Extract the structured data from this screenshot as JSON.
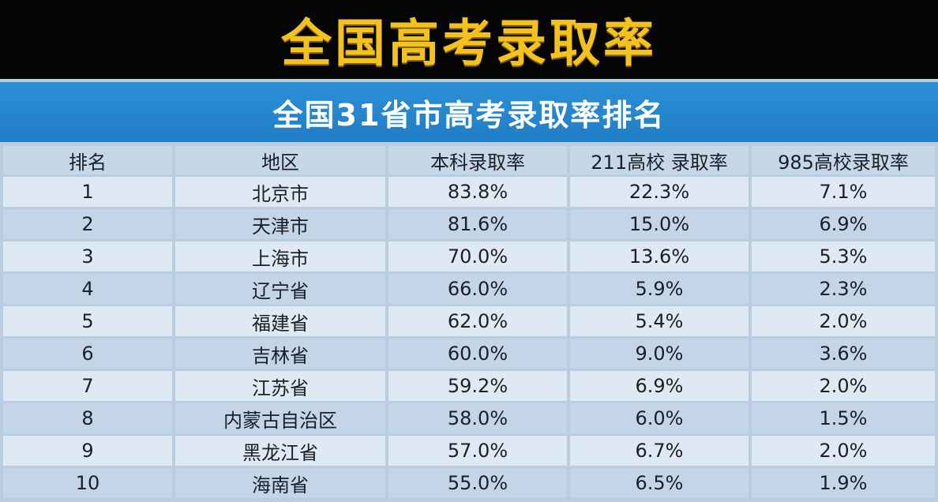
{
  "banner": {
    "title": "全国高考录取率"
  },
  "subtitle": "全国31省市高考录取率排名",
  "colors": {
    "banner_bg": "#050505",
    "title_gold": "#f3c21c",
    "subtitle_bar": "#2d8fd6",
    "row_light": "#dfe9f3",
    "row_dark": "#c3d5e7"
  },
  "table": {
    "headers": [
      "排名",
      "地区",
      "本科录取率",
      "211高校 录取率",
      "985高校录取率"
    ],
    "rows": [
      [
        "1",
        "北京市",
        "83.8%",
        "22.3%",
        "7.1%"
      ],
      [
        "2",
        "天津市",
        "81.6%",
        "15.0%",
        "6.9%"
      ],
      [
        "3",
        "上海市",
        "70.0%",
        "13.6%",
        "5.3%"
      ],
      [
        "4",
        "辽宁省",
        "66.0%",
        "5.9%",
        "2.3%"
      ],
      [
        "5",
        "福建省",
        "62.0%",
        "5.4%",
        "2.0%"
      ],
      [
        "6",
        "吉林省",
        "60.0%",
        "9.0%",
        "3.6%"
      ],
      [
        "7",
        "江苏省",
        "59.2%",
        "6.9%",
        "2.0%"
      ],
      [
        "8",
        "内蒙古自治区",
        "58.0%",
        "6.0%",
        "1.5%"
      ],
      [
        "9",
        "黑龙江省",
        "57.0%",
        "6.7%",
        "2.0%"
      ],
      [
        "10",
        "海南省",
        "55.0%",
        "6.5%",
        "1.9%"
      ]
    ]
  }
}
